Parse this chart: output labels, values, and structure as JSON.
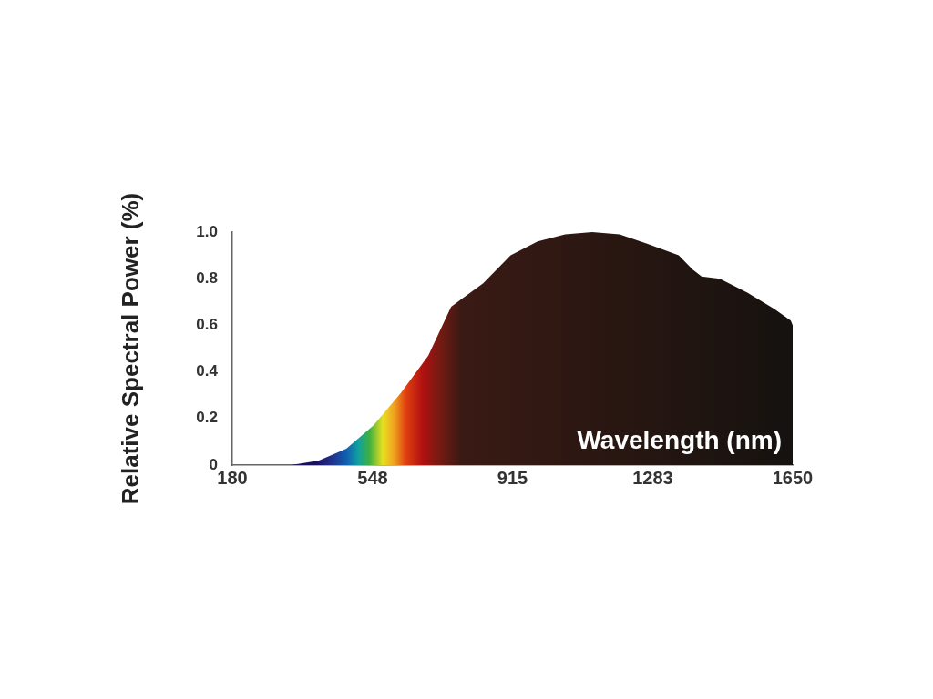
{
  "chart_data": {
    "type": "area",
    "xlabel": "Wavelength (nm)",
    "ylabel": "Relative Spectral Power (%)",
    "x": [
      180,
      335,
      407,
      479,
      550,
      622,
      694,
      754,
      838,
      910,
      981,
      1053,
      1124,
      1196,
      1268,
      1351,
      1387,
      1411,
      1459,
      1531,
      1602,
      1645,
      1650
    ],
    "series": [
      {
        "color": "#15120f",
        "values": [
          0,
          0,
          0.02,
          0.07,
          0.17,
          0.31,
          0.47,
          0.68,
          0.78,
          0.9,
          0.96,
          0.99,
          1.0,
          0.99,
          0.95,
          0.9,
          0.84,
          0.81,
          0.8,
          0.74,
          0.67,
          0.62,
          0.6
        ]
      }
    ],
    "xlim": [
      180,
      1650
    ],
    "xticks": [
      180,
      548,
      915,
      1283,
      1650
    ],
    "ylim": [
      0,
      1.0
    ],
    "yticks": [
      {
        "value": 0,
        "label": "0"
      },
      {
        "value": 0.2,
        "label": "0.2"
      },
      {
        "value": 0.4,
        "label": "0.4"
      },
      {
        "value": 0.6,
        "label": "0.6"
      },
      {
        "value": 0.8,
        "label": "0.8"
      },
      {
        "value": 1.0,
        "label": "1.0"
      }
    ],
    "grid": false,
    "legend": false,
    "marker": "none"
  }
}
